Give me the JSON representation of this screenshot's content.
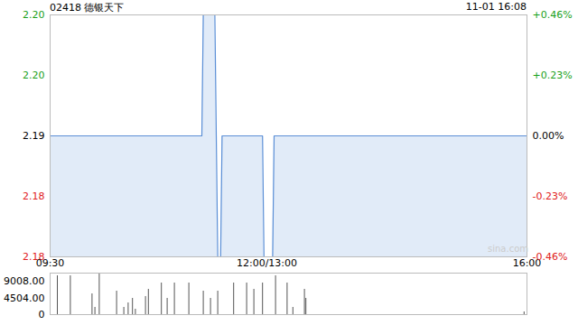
{
  "chart_data": [
    {
      "type": "line",
      "title": "02418 德银天下",
      "subtitle": "11-01 16:08",
      "annotations": [
        "sina.com"
      ],
      "color": "#5b8fd6",
      "x": [
        0,
        105,
        106,
        114,
        115,
        116,
        118,
        119,
        147,
        148,
        154,
        155,
        330
      ],
      "values": [
        2.19,
        2.19,
        2.2,
        2.2,
        2.19,
        2.18,
        2.18,
        2.19,
        2.19,
        2.18,
        2.18,
        2.19,
        2.19
      ],
      "xlim": [
        0,
        330
      ],
      "xticks": [
        {
          "value": 0,
          "label": "09:30"
        },
        {
          "value": 150,
          "label": "12:00/13:00"
        },
        {
          "value": 330,
          "label": "16:00"
        }
      ],
      "ylim": [
        2.18,
        2.2
      ],
      "yticks": [
        {
          "value": 2.2,
          "label": "2.20",
          "color": "#1a9f1a"
        },
        {
          "value": 2.195,
          "label": "2.20",
          "color": "#1a9f1a"
        },
        {
          "value": 2.19,
          "label": "2.19",
          "color": "#000000"
        },
        {
          "value": 2.185,
          "label": "2.18",
          "color": "#e02020"
        },
        {
          "value": 2.18,
          "label": "2.18",
          "color": "#e02020"
        }
      ],
      "y2lim": [
        -0.46,
        0.46
      ],
      "y2ticks": [
        {
          "value": 0.46,
          "label": "+0.46%",
          "color": "#1a9f1a"
        },
        {
          "value": 0.23,
          "label": "+0.23%",
          "color": "#1a9f1a"
        },
        {
          "value": 0,
          "label": "0.00%",
          "color": "#000000"
        },
        {
          "value": -0.23,
          "label": "-0.23%",
          "color": "#e02020"
        },
        {
          "value": -0.46,
          "label": "-0.46%",
          "color": "#e02020"
        }
      ]
    },
    {
      "type": "bar",
      "color": "#555555",
      "x": [
        5,
        14,
        29,
        31,
        34,
        46,
        51,
        54,
        57,
        59,
        66,
        68,
        77,
        81,
        86,
        96,
        106,
        111,
        116,
        127,
        136,
        141,
        147,
        156,
        164,
        168,
        176,
        177,
        328
      ],
      "values": [
        10470,
        10470,
        5600,
        1950,
        11000,
        6330,
        1950,
        3160,
        4380,
        1460,
        4870,
        6820,
        8520,
        4380,
        8520,
        8520,
        6330,
        4380,
        6330,
        8520,
        8520,
        6820,
        8520,
        10470,
        8520,
        1950,
        6820,
        4380,
        730
      ],
      "xlim": [
        0,
        330
      ],
      "ylim": [
        0,
        11200
      ],
      "yticks": [
        0,
        {
          "value": 4504,
          "label": "4504.00"
        },
        {
          "value": 9008,
          "label": "9008.00"
        }
      ]
    }
  ]
}
